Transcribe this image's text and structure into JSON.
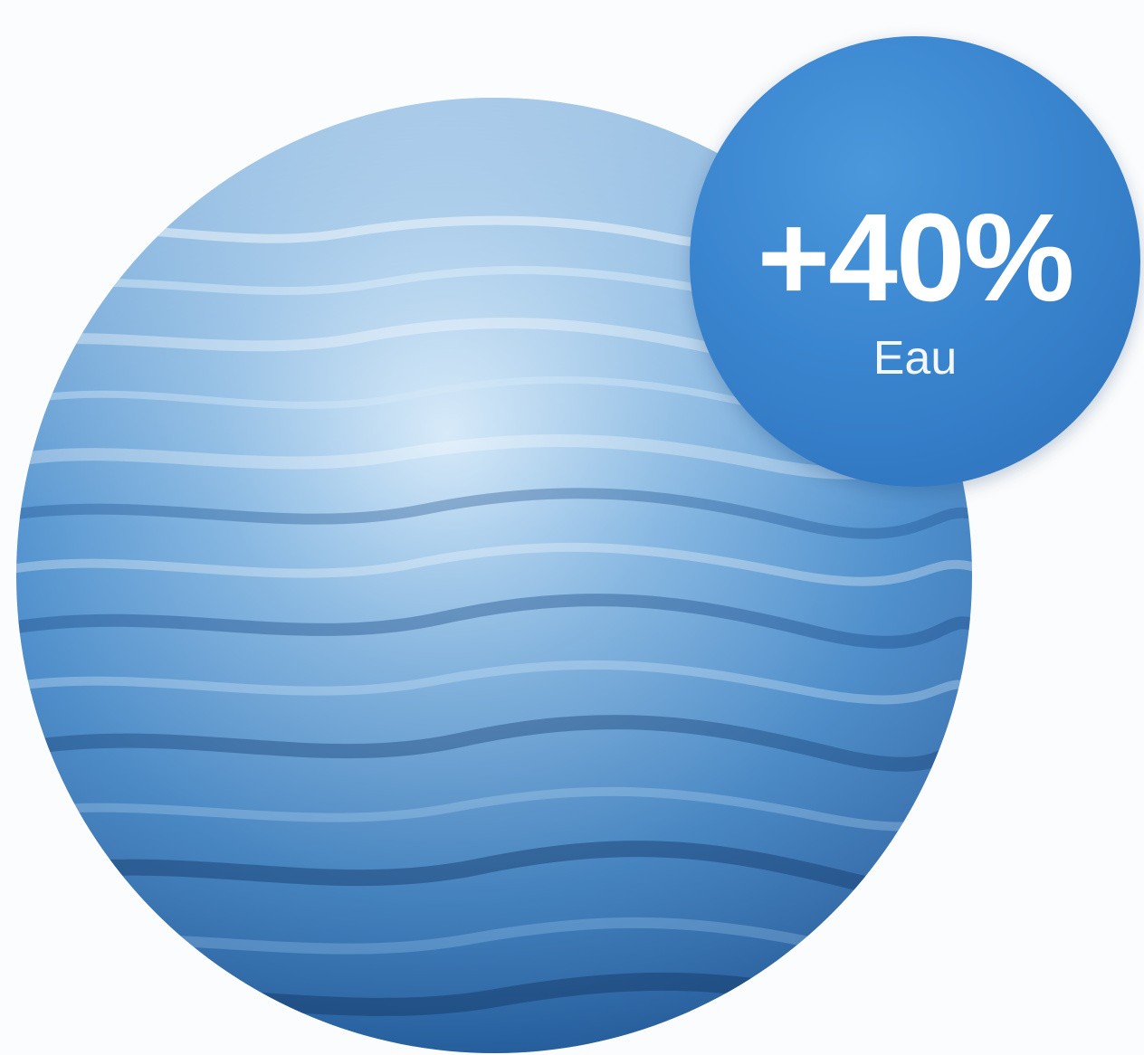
{
  "badge": {
    "value": "+40%",
    "label": "Eau"
  },
  "colors": {
    "background": "#fbfcfd",
    "water_light": "#cfe6f8",
    "water_mid": "#3f86c9",
    "water_dark": "#1f528f",
    "badge_fill": "#3a85cf",
    "badge_text": "#ffffff"
  }
}
